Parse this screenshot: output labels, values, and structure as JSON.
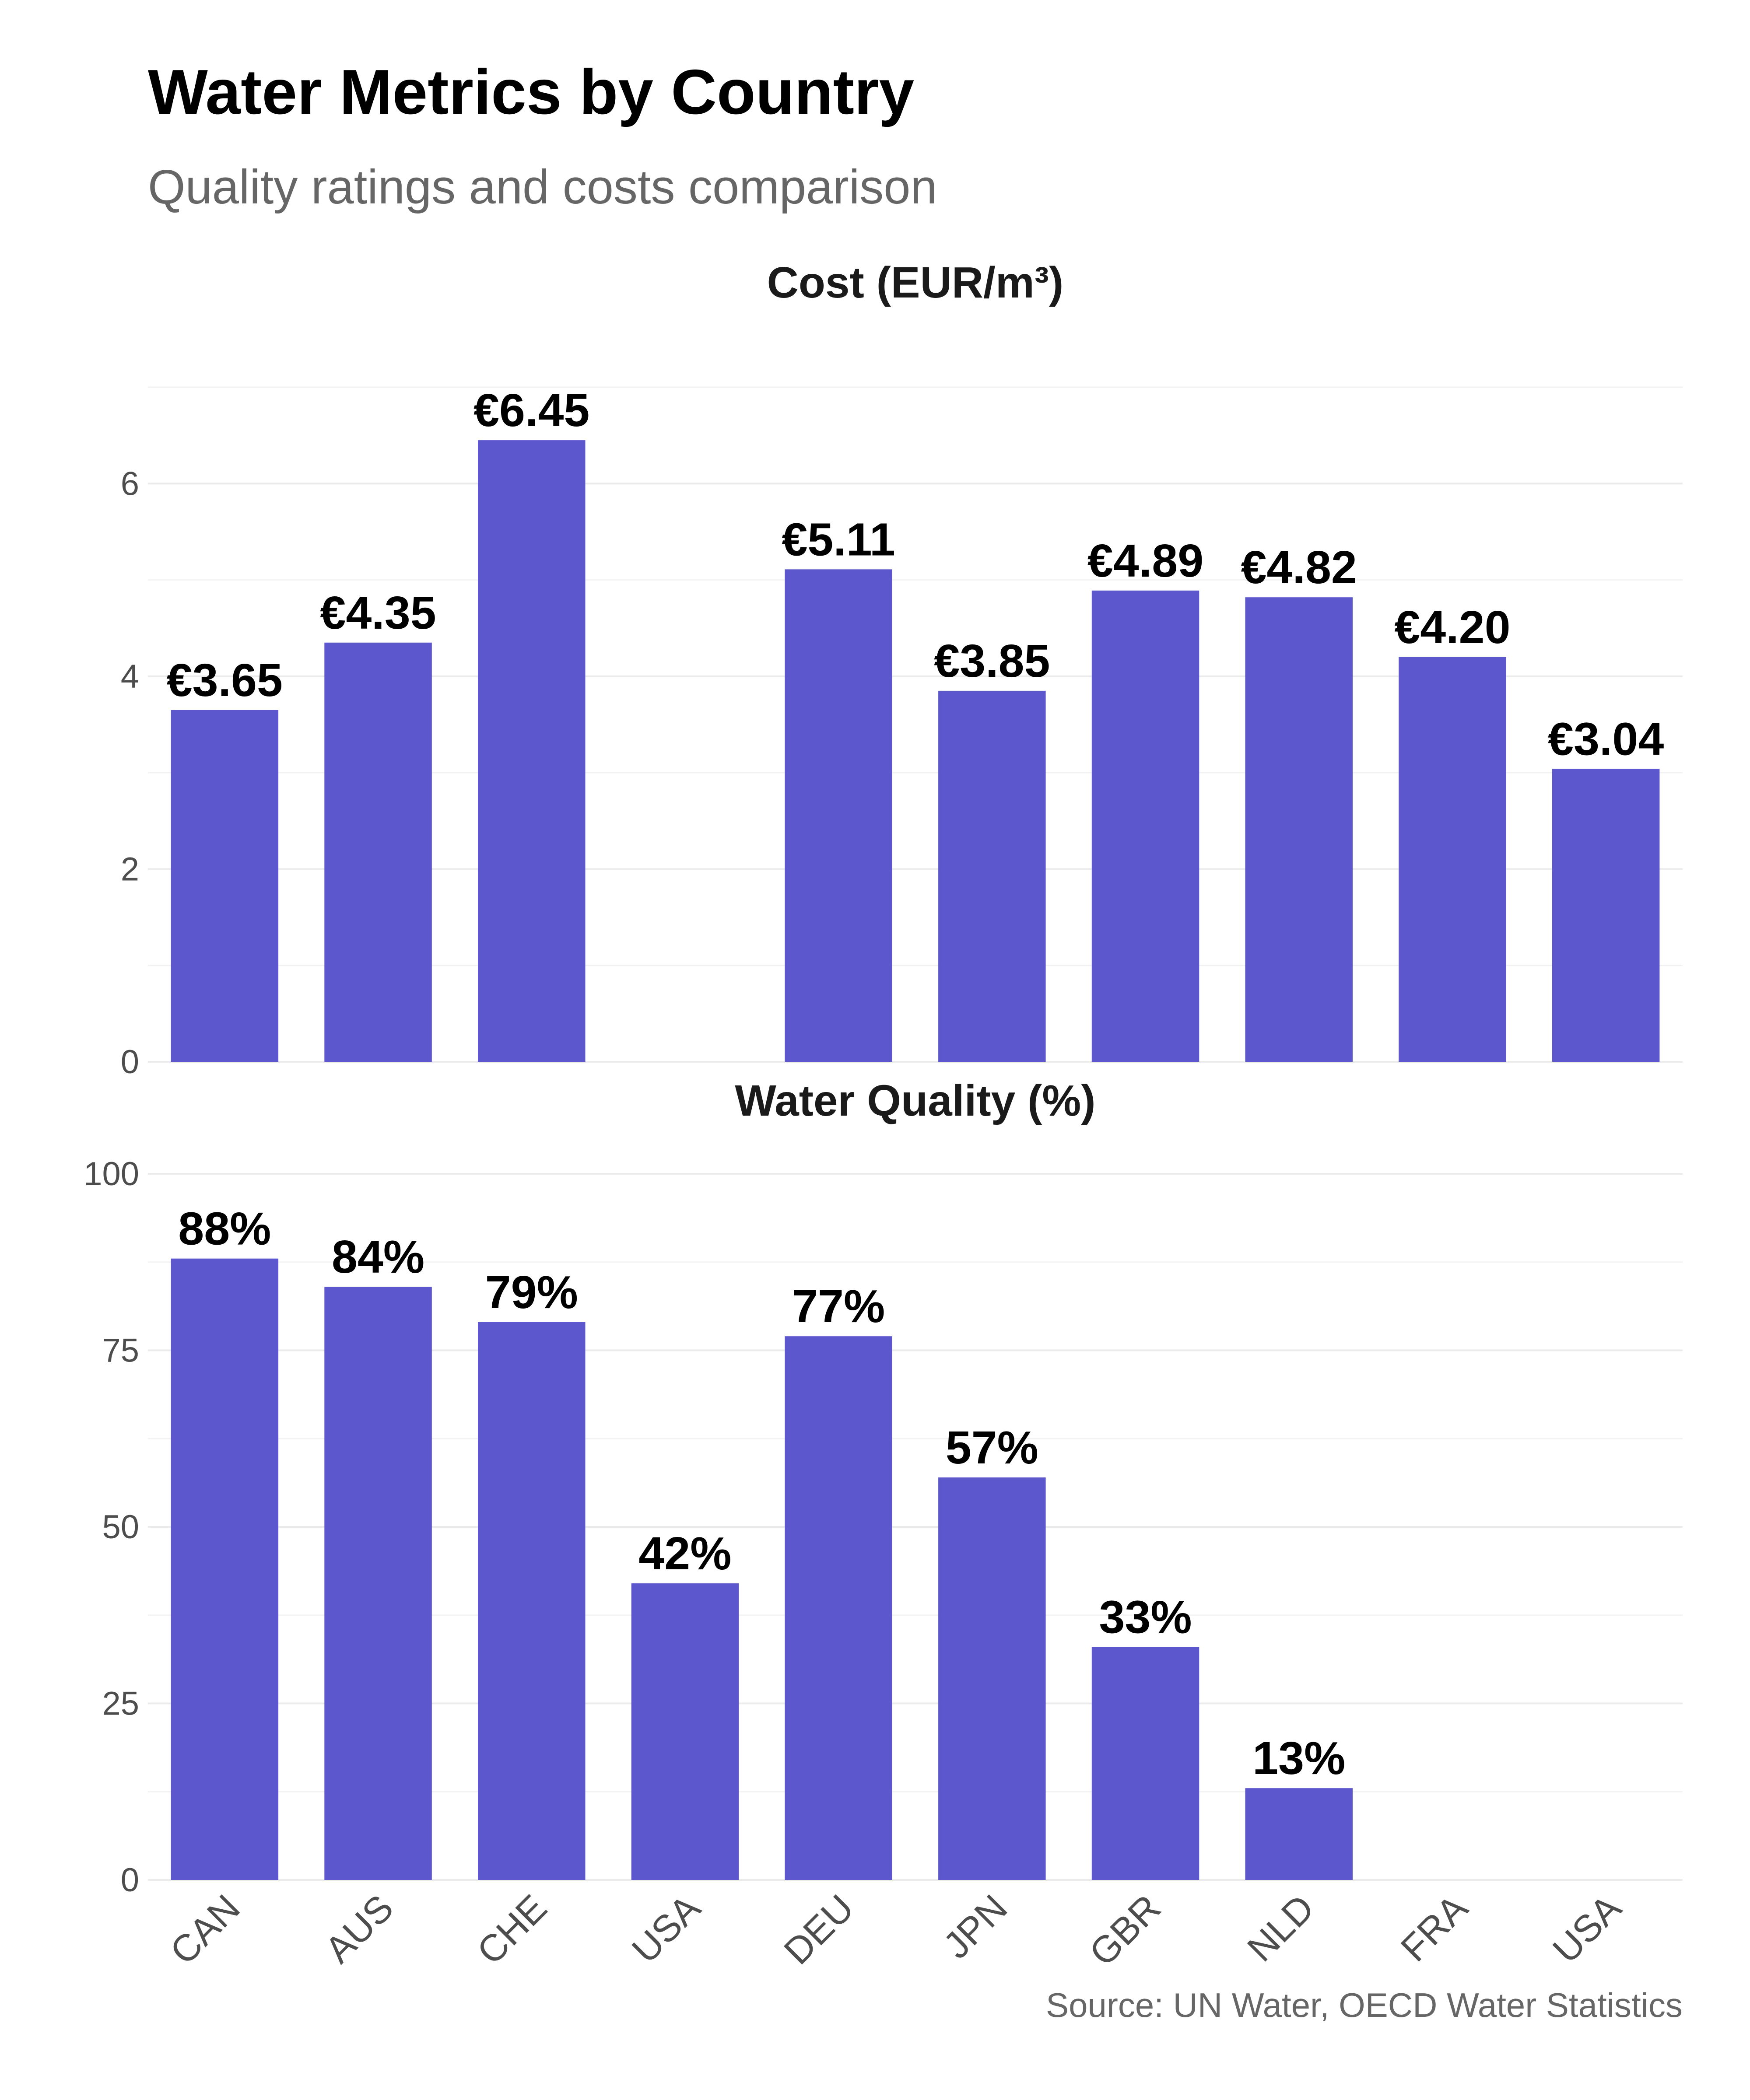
{
  "chart_data": {
    "type": "bar",
    "title": "Water Metrics by Country",
    "subtitle": "Quality ratings and costs comparison",
    "caption": "Source: UN Water, OECD Water Statistics",
    "categories": [
      "CAN",
      "AUS",
      "CHE",
      "USA",
      "DEU",
      "JPN",
      "GBR",
      "NLD",
      "FRA",
      "USA"
    ],
    "bar_color": "#5D57CD",
    "grid": true,
    "panels": [
      {
        "title": "Cost (EUR/m³)",
        "ylim": [
          0,
          7
        ],
        "yticks": [
          0,
          2,
          4,
          6
        ],
        "values": [
          3.65,
          4.35,
          6.45,
          null,
          5.11,
          3.85,
          4.89,
          4.82,
          4.2,
          3.04
        ],
        "labels": [
          "€3.65",
          "€4.35",
          "€6.45",
          null,
          "€5.11",
          "€3.85",
          "€4.89",
          "€4.82",
          "€4.20",
          "€3.04"
        ]
      },
      {
        "title": "Water Quality (%)",
        "ylim": [
          0,
          100
        ],
        "yticks": [
          0,
          25,
          50,
          75,
          100
        ],
        "values": [
          88,
          84,
          79,
          42,
          77,
          57,
          33,
          13,
          null,
          null
        ],
        "labels": [
          "88%",
          "84%",
          "79%",
          "42%",
          "77%",
          "57%",
          "33%",
          "13%",
          null,
          null
        ]
      }
    ]
  }
}
